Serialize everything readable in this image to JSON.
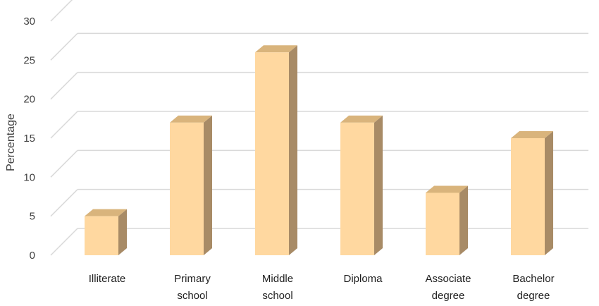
{
  "chart_data": {
    "type": "bar",
    "style": "3d-column",
    "title": "",
    "xlabel": "",
    "ylabel": "Percentage",
    "ylim": [
      0,
      30
    ],
    "yticks": [
      0,
      5,
      10,
      15,
      20,
      25,
      30
    ],
    "grid": true,
    "legend": "none",
    "categories": [
      [
        "Illiterate"
      ],
      [
        "Primary",
        "school"
      ],
      [
        "Middle",
        "school"
      ],
      [
        "Diploma"
      ],
      [
        "Associate",
        "degree"
      ],
      [
        "Bachelor",
        "degree"
      ]
    ],
    "values": [
      5,
      17,
      26,
      17,
      8,
      15
    ],
    "colors": {
      "front": "#FFD8A0",
      "top": "#D9B47C",
      "side": "#A88B66",
      "grid": "#D9D9D9"
    }
  }
}
